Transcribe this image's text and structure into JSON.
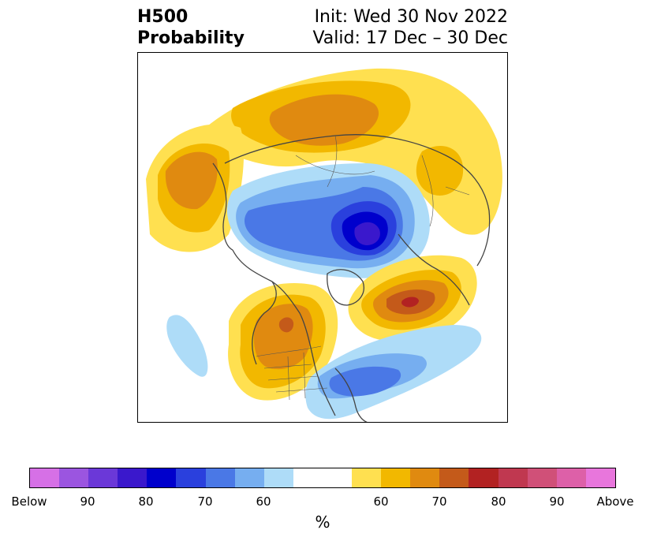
{
  "title": {
    "left_line1": "H500",
    "left_line2": "Probability",
    "right_line1": "Init: Wed 30 Nov 2022",
    "right_line2": "Valid: 17 Dec – 30 Dec"
  },
  "colorbar": {
    "colors": [
      "#d670e6",
      "#9b55e0",
      "#6b38d8",
      "#3a18cc",
      "#0000cc",
      "#2a40dd",
      "#4a78e6",
      "#76aef0",
      "#aedcf8",
      "#ffffff",
      "#ffe050",
      "#f2b800",
      "#e08a10",
      "#c45a1a",
      "#b22222",
      "#c03850",
      "#d05078",
      "#dd60a8",
      "#e876dc"
    ],
    "tick_labels": [
      "Below",
      "90",
      "80",
      "70",
      "60",
      "60",
      "70",
      "80",
      "90",
      "Above"
    ],
    "unit": "%"
  },
  "map": {
    "colors": {
      "blue_light": "#aedcf8",
      "blue_1": "#76aef0",
      "blue_2": "#4a78e6",
      "blue_3": "#2a40dd",
      "blue_4": "#0000cc",
      "blue_5": "#3a18cc",
      "yellow": "#ffe050",
      "gold": "#f2b800",
      "orange": "#e08a10",
      "rust": "#c45a1a",
      "red": "#b22222",
      "coast": "#444444"
    }
  }
}
